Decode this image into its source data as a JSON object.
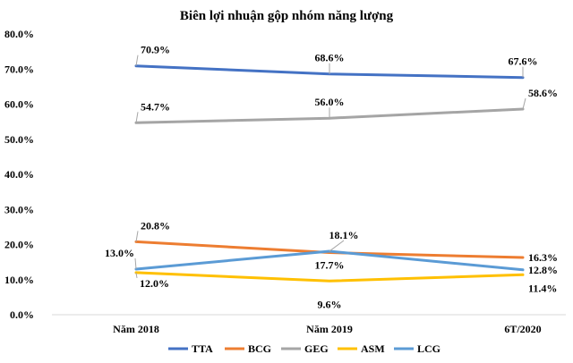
{
  "chart_data": {
    "type": "line",
    "title": "Biên lợi nhuận gộp nhóm năng lượng",
    "xlabel": "",
    "ylabel": "",
    "categories": [
      "Năm 2018",
      "Năm 2019",
      "6T/2020"
    ],
    "ylim": [
      0,
      80
    ],
    "yticks": [
      0,
      10,
      20,
      30,
      40,
      50,
      60,
      70,
      80
    ],
    "ytick_labels": [
      "0.0%",
      "10.0%",
      "20.0%",
      "30.0%",
      "40.0%",
      "50.0%",
      "60.0%",
      "70.0%",
      "80.0%"
    ],
    "grid": false,
    "legend_position": "bottom",
    "series": [
      {
        "name": "TTA",
        "color": "#4472C4",
        "values": [
          70.9,
          68.6,
          67.6
        ],
        "labels": [
          "70.9%",
          "68.6%",
          "67.6%"
        ]
      },
      {
        "name": "BCG",
        "color": "#ED7D31",
        "values": [
          20.8,
          17.7,
          16.3
        ],
        "labels": [
          "20.8%",
          "17.7%",
          "16.3%"
        ]
      },
      {
        "name": "GEG",
        "color": "#A5A5A5",
        "values": [
          54.7,
          56.0,
          58.6
        ],
        "labels": [
          "54.7%",
          "56.0%",
          "58.6%"
        ]
      },
      {
        "name": "ASM",
        "color": "#FFC000",
        "values": [
          12.0,
          9.6,
          11.4
        ],
        "labels": [
          "12.0%",
          "9.6%",
          "11.4%"
        ]
      },
      {
        "name": "LCG",
        "color": "#5B9BD5",
        "values": [
          13.0,
          18.1,
          12.8
        ],
        "labels": [
          "13.0%",
          "18.1%",
          "12.8%"
        ]
      }
    ]
  }
}
